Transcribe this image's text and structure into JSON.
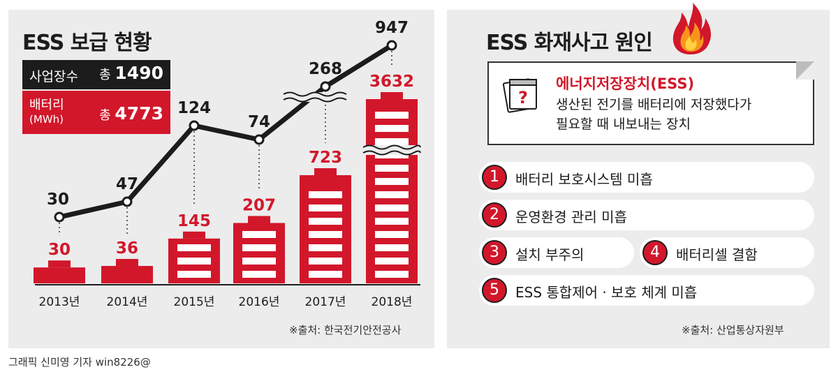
{
  "left": {
    "title": "ESS 보급 현황",
    "sites_label": "사업장수",
    "sites_total_prefix": "총",
    "sites_total": "1490",
    "battery_label_line1": "배터리",
    "battery_label_line2": "(MWh)",
    "battery_total_prefix": "총",
    "battery_total": "4773",
    "source": "※출처: 한국전기안전공사"
  },
  "chart_data": {
    "type": "bar",
    "categories": [
      "2013년",
      "2014년",
      "2015년",
      "2016년",
      "2017년",
      "2018년"
    ],
    "series": [
      {
        "name": "배터리 (MWh)",
        "type": "bar",
        "values": [
          30,
          36,
          145,
          207,
          723,
          3632
        ]
      },
      {
        "name": "사업장수",
        "type": "line",
        "values": [
          30,
          47,
          124,
          74,
          268,
          947
        ]
      }
    ],
    "axis_break": true,
    "colors": {
      "bar": "#d2172b",
      "line": "#1c1c1c"
    }
  },
  "right": {
    "title": "ESS 화재사고 원인",
    "icon": "fire-icon",
    "card_icon": "calendar-question-icon",
    "card_title": "에너지저장장치(ESS)",
    "card_desc_line1": "생산된 전기를 배터리에 저장했다가",
    "card_desc_line2": "필요할 때 내보내는 장치",
    "causes": [
      {
        "num": "1",
        "text": "배터리 보호시스템 미흡"
      },
      {
        "num": "2",
        "text": "운영환경 관리 미흡"
      },
      {
        "num": "3",
        "text": "설치 부주의"
      },
      {
        "num": "4",
        "text": "배터리셀 결함"
      },
      {
        "num": "5",
        "text": "ESS 통합제어 · 보호 체계 미흡"
      }
    ],
    "source": "※출처: 산업통상자원부"
  },
  "credit": "그래픽 신미영 기자 win8226@"
}
